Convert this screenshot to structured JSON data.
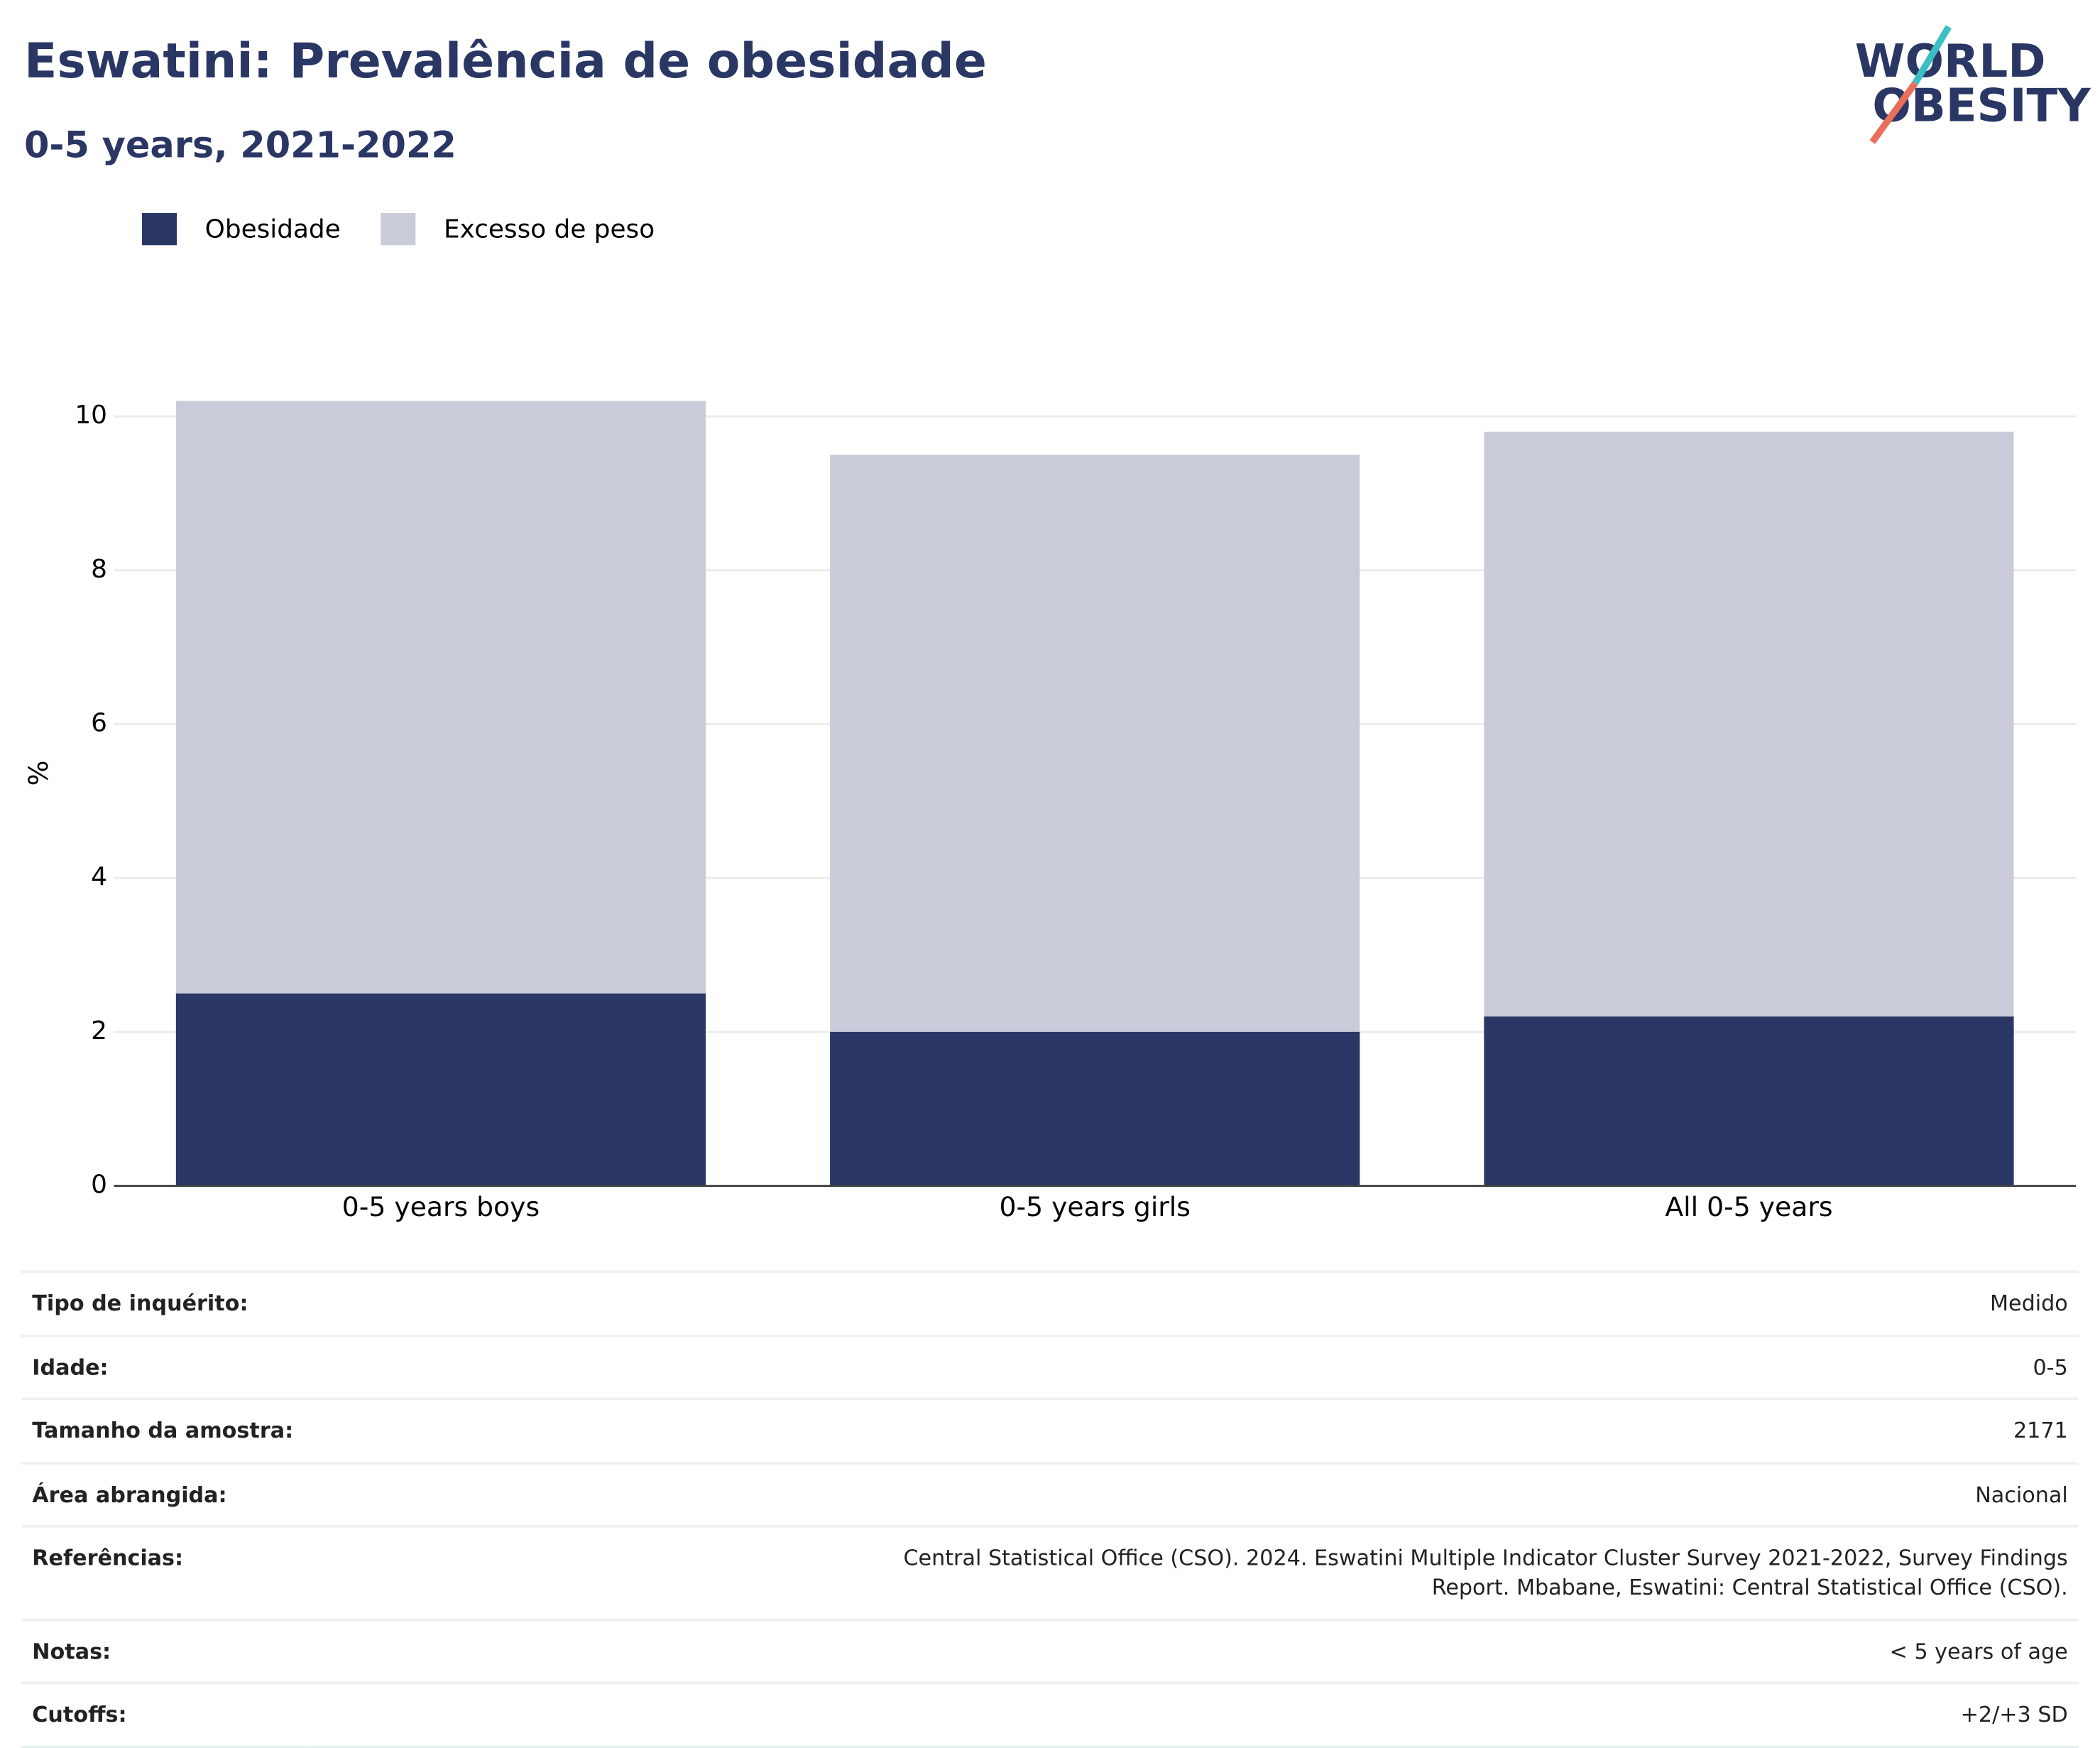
{
  "chart_data": {
    "type": "bar",
    "barmode": "overlay",
    "title": "Eswatini: Prevalência de obesidade",
    "subtitle": "0-5 years, 2021-2022",
    "y_label": "%",
    "categories": [
      "0-5 years boys",
      "0-5 years girls",
      "All 0-5 years"
    ],
    "series": [
      {
        "name": "Obesidade",
        "color": "#2a3664",
        "values": [
          2.5,
          2.0,
          2.2
        ]
      },
      {
        "name": "Excesso de peso",
        "color": "#c9ccd8",
        "values": [
          10.2,
          9.5,
          9.8
        ]
      }
    ],
    "ylim": [
      0,
      10.5
    ],
    "yticks": [
      0,
      2,
      4,
      6,
      8,
      10
    ],
    "grid": true,
    "legend": "top-left"
  },
  "logo": {
    "line1": "WORLD",
    "line2": "OBESITY"
  },
  "table": {
    "rows": [
      [
        "Tipo de inquérito:",
        "Medido"
      ],
      [
        "Idade:",
        "0-5"
      ],
      [
        "Tamanho da amostra:",
        "2171"
      ],
      [
        "Área abrangida:",
        "Nacional"
      ],
      [
        "Referências:",
        "Central Statistical Office (CSO). 2024. Eswatini Multiple Indicator Cluster Survey 2021-2022, Survey Findings Report. Mbabane, Eswatini: Central Statistical Office (CSO)."
      ],
      [
        "Notas:",
        "< 5 years of age"
      ],
      [
        "Cutoffs:",
        "+2/+3 SD"
      ]
    ]
  }
}
